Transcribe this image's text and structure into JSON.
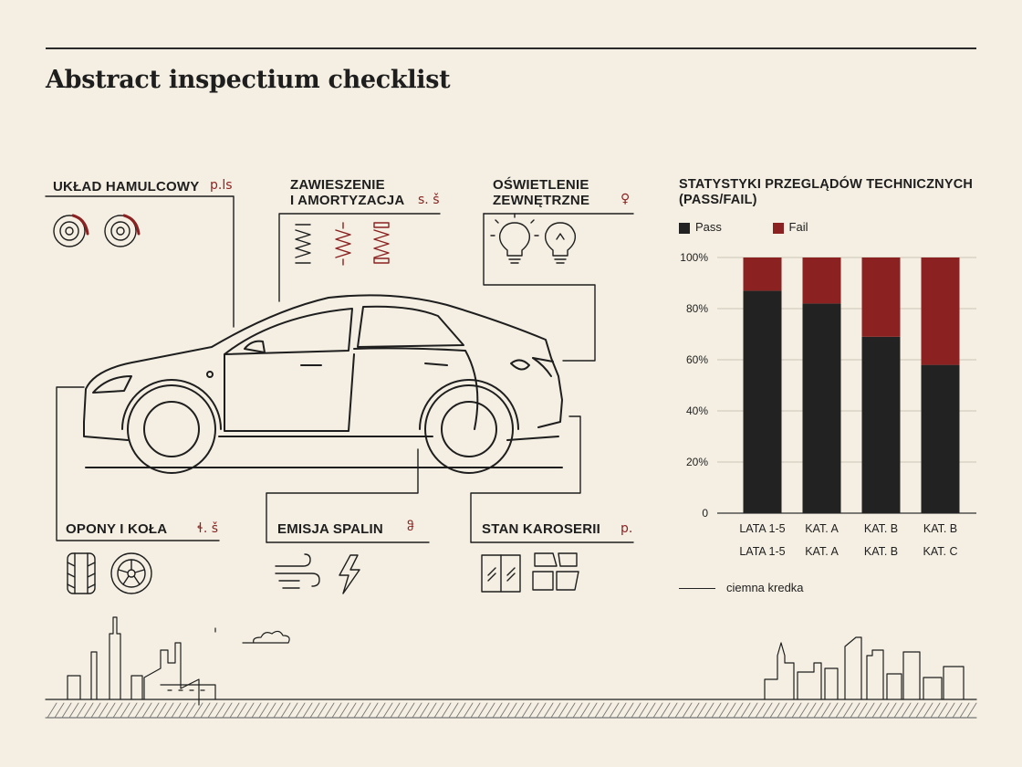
{
  "title": "Abstract inspectium checklist",
  "sections": {
    "brakes": {
      "label": "UKŁAD HAMULCOWY",
      "note": "p.ls",
      "icons": [
        "brake-disc-icon",
        "brake-disc-icon"
      ]
    },
    "suspension": {
      "label_line1": "ZAWIESZENIE",
      "label_line2": "I AMORTYZACJA",
      "note": "s. š",
      "icons": [
        "coil-spring-icon",
        "coil-spring-icon",
        "coil-spring-icon"
      ]
    },
    "lighting": {
      "label_line1": "OŚWIETLENIE",
      "label_line2": "ZEWNĘTRZNE",
      "note": "♀",
      "icons": [
        "light-bulb-icon",
        "light-bulb-icon"
      ]
    },
    "tires": {
      "label": "OPONY I KOŁA",
      "note": "ɬ. š",
      "icons": [
        "tire-tread-icon",
        "wheel-rim-icon"
      ]
    },
    "emissions": {
      "label": "EMISJA SPALIN",
      "note": "ჵ",
      "icons": [
        "wind-icon",
        "lightning-icon"
      ]
    },
    "body": {
      "label": "STAN KAROSERII",
      "note": "p.",
      "icons": [
        "window-glass-icon",
        "body-panels-icon"
      ]
    }
  },
  "chart_data": {
    "type": "bar",
    "stacked": true,
    "title_line1": "STATYSTYKI PRZEGLĄDÓW TECHNICZNYCH",
    "title_line2": "(PASS/FAIL)",
    "categories": [
      {
        "line1": "LATA 1-5",
        "line2": "LATA 1-5"
      },
      {
        "line1": "KAT. A",
        "line2": "KAT. A"
      },
      {
        "line1": "KAT. B",
        "line2": "KAT. B"
      },
      {
        "line1": "KAT. B",
        "line2": "KAT. C"
      }
    ],
    "series": [
      {
        "name": "Pass",
        "color": "#222222",
        "values": [
          87,
          82,
          69,
          58
        ]
      },
      {
        "name": "Fail",
        "color": "#8b2121",
        "values": [
          13,
          18,
          31,
          42
        ]
      }
    ],
    "ylim": [
      0,
      100
    ],
    "yticks": [
      "0",
      "20%",
      "40%",
      "60%",
      "80%",
      "100%"
    ],
    "grid": true,
    "legend_position": "top-left",
    "footnote": "ciemna kredka"
  }
}
